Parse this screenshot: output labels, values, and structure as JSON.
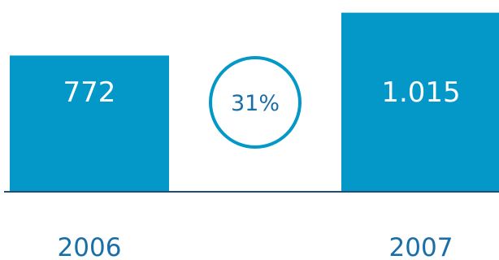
{
  "chart_data": {
    "type": "bar",
    "categories": [
      "2006",
      "2007"
    ],
    "values": [
      772,
      1015
    ],
    "value_labels": [
      "772",
      "1.015"
    ],
    "growth_label": "31%",
    "ylim": [
      0,
      1050
    ],
    "grid": false,
    "legend": "none"
  },
  "colors": {
    "bar": "#0398C8",
    "label": "#1A6EA8",
    "circle_stroke": "#0398C8",
    "axis": "#1F4E79"
  }
}
